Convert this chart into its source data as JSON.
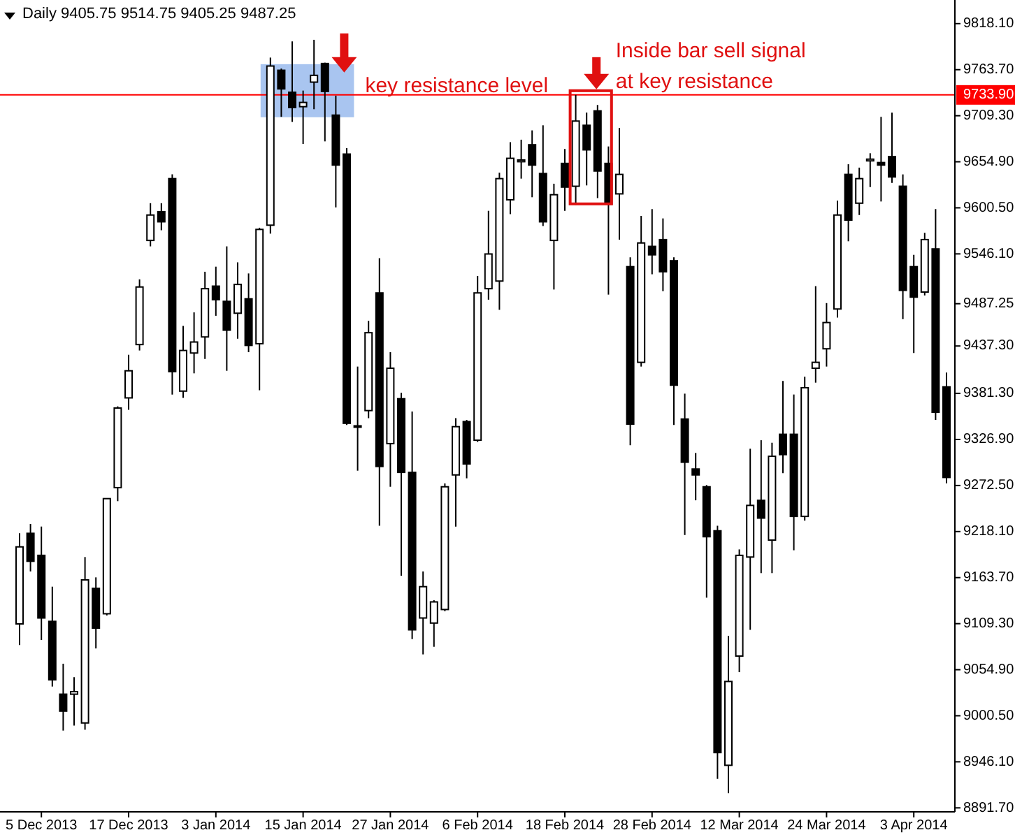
{
  "chart_data": {
    "type": "candlestick",
    "title": "Daily 9405.75 9514.75 9405.25 9487.25",
    "categories": [
      null,
      null,
      "5 Dec 2013",
      null,
      null,
      null,
      null,
      null,
      null,
      null,
      "17 Dec 2013",
      null,
      null,
      null,
      null,
      null,
      null,
      null,
      "3 Jan 2014",
      null,
      null,
      null,
      null,
      null,
      null,
      null,
      "15 Jan 2014",
      null,
      null,
      null,
      null,
      null,
      null,
      null,
      "27 Jan 2014",
      null,
      null,
      null,
      null,
      null,
      null,
      null,
      "6 Feb 2014",
      null,
      null,
      null,
      null,
      null,
      null,
      null,
      "18 Feb 2014",
      null,
      null,
      null,
      null,
      null,
      null,
      null,
      "28 Feb 2014",
      null,
      null,
      null,
      null,
      null,
      null,
      null,
      "12 Mar 2014",
      null,
      null,
      null,
      null,
      null,
      null,
      null,
      "24 Mar 2014",
      null,
      null,
      null,
      null,
      null,
      null,
      null,
      "3 Apr 2014",
      null,
      null,
      null
    ],
    "ohlc": [
      [
        9109,
        9216,
        9084,
        9200
      ],
      [
        9216,
        9227,
        9171,
        9183
      ],
      [
        9190,
        9224,
        9090,
        9116
      ],
      [
        9112,
        9153,
        9035,
        9043
      ],
      [
        9026,
        9062,
        8983,
        9006
      ],
      [
        9026,
        9046,
        8989,
        9029
      ],
      [
        8992,
        9188,
        8984,
        9161
      ],
      [
        9151,
        9164,
        9080,
        9104
      ],
      [
        9121,
        9257,
        9119,
        9257
      ],
      [
        9270,
        9366,
        9254,
        9364
      ],
      [
        9376,
        9427,
        9362,
        9408
      ],
      [
        9439,
        9516,
        9432,
        9507
      ],
      [
        9562,
        9606,
        9555,
        9592
      ],
      [
        9596,
        9606,
        9574,
        9584
      ],
      [
        9635,
        9640,
        9380,
        9407
      ],
      [
        9384,
        9461,
        9376,
        9432
      ],
      [
        9429,
        9477,
        9405,
        9442
      ],
      [
        9448,
        9525,
        9422,
        9505
      ],
      [
        9508,
        9531,
        9473,
        9492
      ],
      [
        9490,
        9555,
        9408,
        9456
      ],
      [
        9476,
        9536,
        9446,
        9510
      ],
      [
        9493,
        9523,
        9430,
        9438
      ],
      [
        9440,
        9577,
        9385,
        9575
      ],
      [
        9580,
        9778,
        9570,
        9768
      ],
      [
        9763,
        9765,
        9708,
        9741
      ],
      [
        9737,
        9797,
        9702,
        9719
      ],
      [
        9720,
        9739,
        9676,
        9725
      ],
      [
        9749,
        9799,
        9717,
        9757
      ],
      [
        9771,
        9772,
        9679,
        9738
      ],
      [
        9710,
        9733,
        9601,
        9651
      ],
      [
        9664,
        9671,
        9344,
        9346
      ],
      [
        9343,
        9413,
        9290,
        9342
      ],
      [
        9361,
        9467,
        9352,
        9453
      ],
      [
        9500,
        9541,
        9225,
        9295
      ],
      [
        9322,
        9430,
        9271,
        9411
      ],
      [
        9375,
        9382,
        9166,
        9288
      ],
      [
        9288,
        9360,
        9091,
        9102
      ],
      [
        9116,
        9171,
        9073,
        9153
      ],
      [
        9110,
        9137,
        9082,
        9135
      ],
      [
        9126,
        9275,
        9124,
        9271
      ],
      [
        9285,
        9352,
        9224,
        9342
      ],
      [
        9348,
        9350,
        9281,
        9298
      ],
      [
        9326,
        9520,
        9324,
        9500
      ],
      [
        9505,
        9597,
        9492,
        9546
      ],
      [
        9514,
        9642,
        9480,
        9635
      ],
      [
        9610,
        9678,
        9593,
        9659
      ],
      [
        9655,
        9681,
        9635,
        9657
      ],
      [
        9675,
        9692,
        9613,
        9651
      ],
      [
        9641,
        9698,
        9579,
        9584
      ],
      [
        9562,
        9629,
        9504,
        9616
      ],
      [
        9653,
        9670,
        9597,
        9625
      ],
      [
        9626,
        9734,
        9604,
        9703
      ],
      [
        9698,
        9713,
        9627,
        9669
      ],
      [
        9715,
        9722,
        9612,
        9644
      ],
      [
        9653,
        9673,
        9498,
        9605
      ],
      [
        9617,
        9695,
        9563,
        9640
      ],
      [
        9531,
        9542,
        9320,
        9345
      ],
      [
        9418,
        9591,
        9413,
        9559
      ],
      [
        9555,
        9599,
        9522,
        9545
      ],
      [
        9563,
        9588,
        9502,
        9525
      ],
      [
        9538,
        9542,
        9344,
        9391
      ],
      [
        9351,
        9381,
        9214,
        9300
      ],
      [
        9292,
        9311,
        9255,
        9285
      ],
      [
        9271,
        9273,
        9140,
        9212
      ],
      [
        9219,
        9225,
        8926,
        8957
      ],
      [
        8942,
        9095,
        8909,
        9041
      ],
      [
        9071,
        9197,
        9052,
        9190
      ],
      [
        9188,
        9316,
        9102,
        9249
      ],
      [
        9255,
        9326,
        9169,
        9234
      ],
      [
        9208,
        9323,
        9169,
        9307
      ],
      [
        9333,
        9396,
        9287,
        9309
      ],
      [
        9333,
        9380,
        9196,
        9236
      ],
      [
        9236,
        9401,
        9231,
        9388
      ],
      [
        9411,
        9508,
        9394,
        9418
      ],
      [
        9434,
        9488,
        9413,
        9465
      ],
      [
        9481,
        9609,
        9471,
        9592
      ],
      [
        9640,
        9652,
        9561,
        9586
      ],
      [
        9606,
        9648,
        9592,
        9635
      ],
      [
        9656,
        9665,
        9625,
        9658
      ],
      [
        9654,
        9708,
        9608,
        9651
      ],
      [
        9661,
        9713,
        9630,
        9637
      ],
      [
        9626,
        9640,
        9469,
        9503
      ],
      [
        9531,
        9545,
        9429,
        9495
      ],
      [
        9501,
        9571,
        9497,
        9563
      ],
      [
        9552,
        9599,
        9350,
        9359
      ],
      [
        9389,
        9406,
        9275,
        9282
      ]
    ],
    "color": "#000000",
    "ylim": [
      8887,
      9846
    ],
    "yticks": [
      {
        "value": 9818.1,
        "label": "9818.10"
      },
      {
        "value": 9763.7,
        "label": "9763.70"
      },
      {
        "value": 9709.3,
        "label": "9709.30"
      },
      {
        "value": 9654.9,
        "label": "9654.90"
      },
      {
        "value": 9600.5,
        "label": "9600.50"
      },
      {
        "value": 9546.1,
        "label": "9546.10"
      },
      9487.25,
      {
        "value": 9437.3,
        "label": "9437.30"
      },
      {
        "value": 9381.3,
        "label": "9381.30"
      },
      {
        "value": 9326.9,
        "label": "9326.90"
      },
      {
        "value": 9272.5,
        "label": "9272.50"
      },
      {
        "value": 9218.1,
        "label": "9218.10"
      },
      {
        "value": 9163.7,
        "label": "9163.70"
      },
      {
        "value": 9109.3,
        "label": "9109.30"
      },
      {
        "value": 9054.9,
        "label": "9054.90"
      },
      {
        "value": 9000.5,
        "label": "9000.50"
      },
      {
        "value": 8946.1,
        "label": "8946.10"
      },
      {
        "value": 8891.7,
        "label": "8891.70"
      }
    ],
    "ref_lines": [
      {
        "axis": "y",
        "value": 9733.9,
        "label": "9733.90",
        "color": "#ff0000"
      }
    ],
    "annotations": [
      "key resistance level",
      "Inside bar sell signal at key resistance"
    ]
  }
}
